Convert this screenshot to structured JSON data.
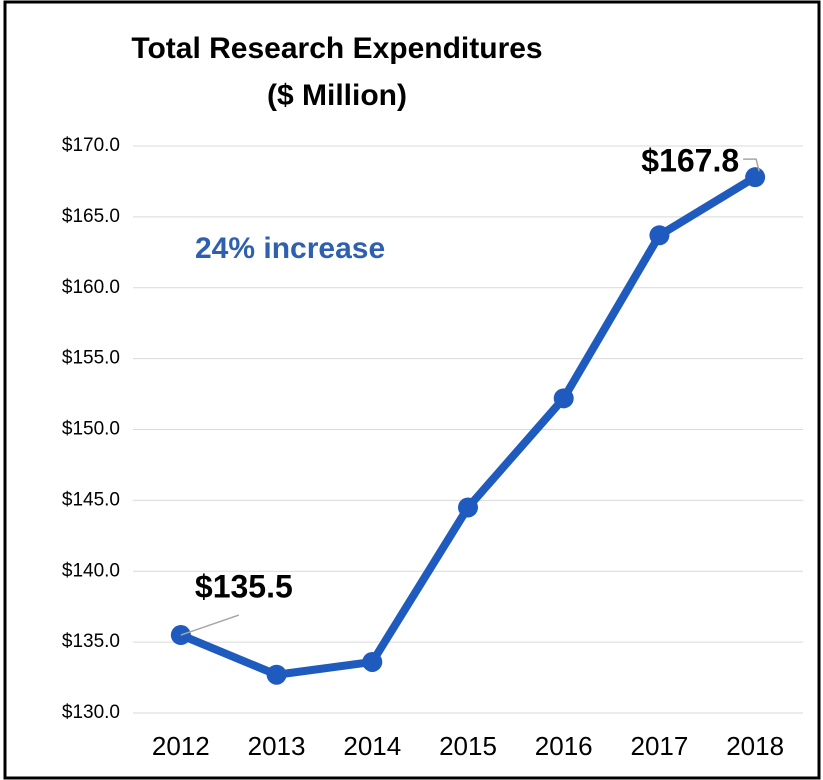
{
  "chart_data": {
    "type": "line",
    "title": "Total Research Expenditures",
    "subtitle": "($ Million)",
    "annotation": "24% increase",
    "categories": [
      "2012",
      "2013",
      "2014",
      "2015",
      "2016",
      "2017",
      "2018"
    ],
    "series": [
      {
        "name": "Total Research Expenditures",
        "color": "#1f5bbf",
        "values": [
          135.5,
          132.7,
          133.6,
          144.5,
          152.2,
          163.7,
          167.8
        ],
        "value_labels": [
          "$135.5",
          null,
          null,
          null,
          null,
          null,
          "$167.8"
        ]
      }
    ],
    "ylim": [
      130,
      170
    ],
    "yticks": [
      {
        "value": 130,
        "label": "$130.0"
      },
      {
        "value": 135,
        "label": "$135.0"
      },
      {
        "value": 140,
        "label": "$140.0"
      },
      {
        "value": 145,
        "label": "$145.0"
      },
      {
        "value": 150,
        "label": "$150.0"
      },
      {
        "value": 155,
        "label": "$155.0"
      },
      {
        "value": 160,
        "label": "$160.0"
      },
      {
        "value": 165,
        "label": "$165.0"
      },
      {
        "value": 170,
        "label": "$170.0"
      }
    ],
    "grid": true
  }
}
